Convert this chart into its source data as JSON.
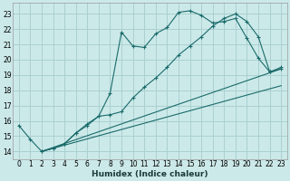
{
  "xlabel": "Humidex (Indice chaleur)",
  "bg_color": "#cce9e9",
  "grid_color": "#aad0d0",
  "line_color": "#1a6b6b",
  "xlim": [
    -0.5,
    23.5
  ],
  "ylim": [
    13.5,
    23.7
  ],
  "yticks": [
    14,
    15,
    16,
    17,
    18,
    19,
    20,
    21,
    22,
    23
  ],
  "xticks": [
    0,
    1,
    2,
    3,
    4,
    5,
    6,
    7,
    8,
    9,
    10,
    11,
    12,
    13,
    14,
    15,
    16,
    17,
    18,
    19,
    20,
    21,
    22,
    23
  ],
  "line1_x": [
    0,
    1,
    2,
    3,
    4,
    5,
    6,
    7,
    8,
    9,
    10,
    11,
    12,
    13,
    14,
    15,
    16,
    17,
    18,
    19,
    20,
    21,
    22,
    23
  ],
  "line1_y": [
    15.7,
    14.8,
    14.0,
    14.2,
    14.5,
    15.2,
    15.8,
    16.3,
    17.8,
    21.8,
    20.9,
    20.8,
    21.7,
    22.1,
    23.1,
    23.2,
    22.9,
    22.4,
    22.5,
    22.7,
    21.4,
    20.1,
    19.2,
    19.4
  ],
  "line2_x": [
    2,
    3,
    4,
    5,
    6,
    7,
    8,
    9,
    10,
    11,
    12,
    13,
    14,
    15,
    16,
    17,
    18,
    19,
    20,
    21,
    22,
    23
  ],
  "line2_y": [
    14.0,
    14.2,
    14.5,
    15.2,
    15.7,
    16.3,
    16.4,
    16.6,
    17.5,
    18.2,
    18.8,
    19.5,
    20.3,
    20.9,
    21.5,
    22.2,
    22.7,
    23.0,
    22.5,
    21.5,
    19.2,
    19.5
  ],
  "line3_x": [
    2,
    23
  ],
  "line3_y": [
    14.0,
    19.4
  ],
  "line4_x": [
    2,
    23
  ],
  "line4_y": [
    14.0,
    18.3
  ]
}
